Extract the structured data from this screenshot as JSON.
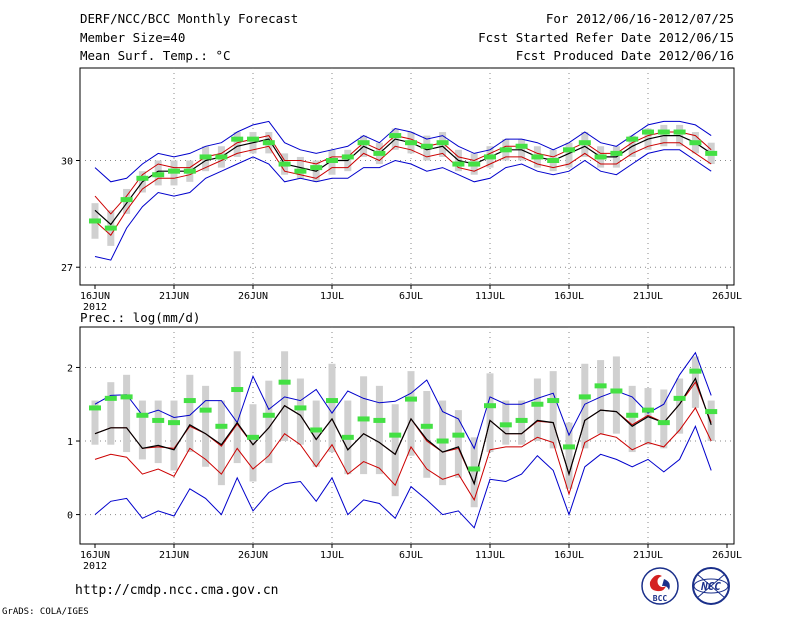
{
  "header": {
    "title": "DERF/NCC/BCC Monthly Forecast",
    "member_size": "Member Size=40",
    "variable": "Mean Surf. Temp.: °C",
    "period": "For 2012/06/16-2012/07/25",
    "refer_date": "Fcst Started Refer Date 2012/06/15",
    "produced_date": "Fcst Produced Date 2012/06/16"
  },
  "precip_label": "Prec.: log(mm/d)",
  "footer": {
    "url": "http://cmdp.ncc.cma.gov.cn",
    "grads": "GrADS: COLA/IGES",
    "logo_left": "BCC",
    "logo_right": "NCC"
  },
  "colors": {
    "upper_lower": "#0000cc",
    "sd_band": "#cc0000",
    "mean": "#000000",
    "observed": "#44e044",
    "spread_bar": "#d0d0d0",
    "grid": "#888888"
  },
  "chart_data": [
    {
      "type": "line",
      "name": "temperature",
      "title": "Mean Surf. Temp.: °C",
      "x_labels": [
        {
          "day": 0,
          "label": "16JUN"
        },
        {
          "day": 5,
          "label": "21JUN"
        },
        {
          "day": 10,
          "label": "26JUN"
        },
        {
          "day": 15,
          "label": "1JUL"
        },
        {
          "day": 20,
          "label": "6JUL"
        },
        {
          "day": 25,
          "label": "11JUL"
        },
        {
          "day": 30,
          "label": "16JUL"
        },
        {
          "day": 35,
          "label": "21JUL"
        },
        {
          "day": 40,
          "label": "26JUL"
        }
      ],
      "year_label": "2012",
      "xlim": [
        0,
        40
      ],
      "ylim": [
        26.5,
        32.6
      ],
      "yticks": [
        27,
        30
      ],
      "series": [
        {
          "name": "upper",
          "values": [
            29.8,
            29.4,
            29.5,
            29.9,
            30.2,
            30.1,
            30.2,
            30.4,
            30.5,
            30.8,
            31.0,
            31.1,
            30.5,
            30.3,
            30.2,
            30.3,
            30.4,
            30.7,
            30.5,
            30.9,
            30.8,
            30.6,
            30.7,
            30.4,
            30.2,
            30.3,
            30.6,
            30.6,
            30.5,
            30.3,
            30.5,
            30.8,
            30.5,
            30.4,
            30.7,
            31.0,
            31.1,
            31.1,
            31.0,
            30.7
          ]
        },
        {
          "name": "sd_upper",
          "values": [
            29.0,
            28.5,
            29.0,
            29.6,
            29.9,
            29.8,
            29.8,
            30.1,
            30.2,
            30.5,
            30.6,
            30.7,
            30.0,
            30.0,
            29.9,
            30.1,
            30.1,
            30.5,
            30.3,
            30.7,
            30.6,
            30.4,
            30.5,
            30.1,
            30.0,
            30.2,
            30.4,
            30.4,
            30.2,
            30.1,
            30.3,
            30.5,
            30.2,
            30.2,
            30.5,
            30.7,
            30.8,
            30.8,
            30.7,
            30.3
          ]
        },
        {
          "name": "mean",
          "values": [
            28.6,
            28.2,
            28.8,
            29.4,
            29.7,
            29.7,
            29.7,
            30.0,
            30.1,
            30.4,
            30.5,
            30.6,
            29.9,
            29.8,
            29.7,
            30.0,
            30.0,
            30.4,
            30.2,
            30.6,
            30.5,
            30.3,
            30.4,
            30.0,
            29.9,
            30.1,
            30.3,
            30.3,
            30.1,
            30.0,
            30.2,
            30.4,
            30.1,
            30.1,
            30.4,
            30.6,
            30.7,
            30.7,
            30.5,
            30.2
          ]
        },
        {
          "name": "sd_lower",
          "values": [
            28.3,
            27.9,
            28.6,
            29.2,
            29.5,
            29.5,
            29.6,
            29.8,
            30.0,
            30.2,
            30.3,
            30.4,
            29.7,
            29.6,
            29.5,
            29.8,
            29.8,
            30.2,
            30.0,
            30.4,
            30.3,
            30.1,
            30.2,
            29.8,
            29.7,
            29.9,
            30.1,
            30.1,
            29.9,
            29.8,
            29.9,
            30.2,
            29.9,
            29.9,
            30.2,
            30.4,
            30.5,
            30.5,
            30.2,
            29.9
          ]
        },
        {
          "name": "lower",
          "values": [
            27.3,
            27.2,
            28.1,
            28.7,
            29.1,
            29.0,
            29.1,
            29.5,
            29.7,
            29.9,
            30.1,
            29.9,
            29.4,
            29.5,
            29.4,
            29.5,
            29.5,
            29.8,
            29.8,
            30.0,
            29.9,
            29.7,
            29.8,
            29.6,
            29.4,
            29.5,
            29.8,
            29.9,
            29.7,
            29.6,
            29.7,
            30.0,
            29.7,
            29.6,
            29.9,
            30.2,
            30.3,
            30.3,
            30.0,
            29.7
          ]
        },
        {
          "name": "observed",
          "values": [
            28.3,
            28.1,
            28.9,
            29.5,
            29.6,
            29.7,
            29.7,
            30.1,
            30.1,
            30.6,
            30.6,
            30.5,
            29.9,
            29.7,
            29.8,
            30.0,
            30.1,
            30.5,
            30.2,
            30.7,
            30.5,
            30.4,
            30.5,
            29.9,
            29.9,
            30.1,
            30.3,
            30.4,
            30.1,
            30.0,
            30.3,
            30.5,
            30.1,
            30.2,
            30.6,
            30.8,
            30.8,
            30.8,
            30.5,
            30.2
          ]
        },
        {
          "name": "spread_high",
          "values": [
            28.8,
            28.6,
            29.2,
            29.7,
            30.0,
            30.0,
            30.0,
            30.4,
            30.4,
            30.8,
            30.8,
            30.8,
            30.2,
            30.1,
            30.0,
            30.3,
            30.3,
            30.7,
            30.5,
            30.9,
            30.8,
            30.7,
            30.8,
            30.3,
            30.2,
            30.4,
            30.6,
            30.6,
            30.4,
            30.3,
            30.5,
            30.8,
            30.4,
            30.4,
            30.7,
            30.9,
            31.0,
            31.0,
            30.8,
            30.5
          ]
        },
        {
          "name": "spread_low",
          "values": [
            27.8,
            27.6,
            28.5,
            29.1,
            29.3,
            29.3,
            29.4,
            29.7,
            29.8,
            30.1,
            30.2,
            30.2,
            29.6,
            29.5,
            29.4,
            29.6,
            29.7,
            30.1,
            29.9,
            30.3,
            30.2,
            30.0,
            30.1,
            29.7,
            29.6,
            29.8,
            30.0,
            30.0,
            29.8,
            29.7,
            29.8,
            30.1,
            29.8,
            29.8,
            30.1,
            30.3,
            30.4,
            30.4,
            30.2,
            29.9
          ]
        }
      ]
    },
    {
      "type": "line",
      "name": "precipitation",
      "title": "Prec.: log(mm/d)",
      "x_labels": [
        {
          "day": 0,
          "label": "16JUN"
        },
        {
          "day": 5,
          "label": "21JUN"
        },
        {
          "day": 10,
          "label": "26JUN"
        },
        {
          "day": 15,
          "label": "1JUL"
        },
        {
          "day": 20,
          "label": "6JUL"
        },
        {
          "day": 25,
          "label": "11JUL"
        },
        {
          "day": 30,
          "label": "16JUL"
        },
        {
          "day": 35,
          "label": "21JUL"
        },
        {
          "day": 40,
          "label": "26JUL"
        }
      ],
      "year_label": "2012",
      "xlim": [
        0,
        40
      ],
      "ylim": [
        -0.4,
        2.55
      ],
      "yticks": [
        0,
        1,
        2
      ],
      "series": [
        {
          "name": "upper",
          "values": [
            1.5,
            1.62,
            1.63,
            1.35,
            1.42,
            1.32,
            1.35,
            1.55,
            1.55,
            1.25,
            1.88,
            1.43,
            1.6,
            1.55,
            1.7,
            1.38,
            1.68,
            1.58,
            1.52,
            1.54,
            1.65,
            1.83,
            1.4,
            1.3,
            0.9,
            1.6,
            1.5,
            1.5,
            1.58,
            1.65,
            1.08,
            1.5,
            1.6,
            1.68,
            1.6,
            1.38,
            1.5,
            1.9,
            2.2,
            1.62
          ]
        },
        {
          "name": "sd_upper",
          "values": [
            1.1,
            1.18,
            1.18,
            0.9,
            0.92,
            0.9,
            1.2,
            1.1,
            0.93,
            1.23,
            0.95,
            1.18,
            1.48,
            1.35,
            1.02,
            1.3,
            0.88,
            1.1,
            0.98,
            0.82,
            1.3,
            1.0,
            0.85,
            0.9,
            0.42,
            1.28,
            1.1,
            1.1,
            1.27,
            1.25,
            0.55,
            1.28,
            1.42,
            1.4,
            1.22,
            1.35,
            1.25,
            1.5,
            1.8,
            1.25
          ]
        },
        {
          "name": "mean",
          "values": [
            1.1,
            1.18,
            1.18,
            0.9,
            0.94,
            0.88,
            1.22,
            1.1,
            0.95,
            1.25,
            0.95,
            1.18,
            1.48,
            1.35,
            1.02,
            1.3,
            0.88,
            1.1,
            0.98,
            0.82,
            1.3,
            1.02,
            0.85,
            0.92,
            0.42,
            1.28,
            1.1,
            1.1,
            1.28,
            1.25,
            0.55,
            1.28,
            1.42,
            1.4,
            1.2,
            1.33,
            1.25,
            1.5,
            1.85,
            1.22
          ]
        },
        {
          "name": "sd_lower",
          "values": [
            0.75,
            0.82,
            0.78,
            0.55,
            0.62,
            0.52,
            0.9,
            0.75,
            0.55,
            0.9,
            0.62,
            0.8,
            1.1,
            0.95,
            0.65,
            0.95,
            0.55,
            0.72,
            0.63,
            0.4,
            0.92,
            0.62,
            0.48,
            0.55,
            0.2,
            0.88,
            0.92,
            0.92,
            1.05,
            0.98,
            0.28,
            0.98,
            1.1,
            1.05,
            0.88,
            0.98,
            0.92,
            1.15,
            1.45,
            1.0
          ]
        },
        {
          "name": "lower",
          "values": [
            0.0,
            0.18,
            0.22,
            -0.05,
            0.05,
            -0.02,
            0.35,
            0.22,
            0.0,
            0.5,
            0.05,
            0.3,
            0.42,
            0.45,
            0.18,
            0.5,
            0.0,
            0.2,
            0.15,
            -0.05,
            0.38,
            0.2,
            0.0,
            0.05,
            -0.18,
            0.48,
            0.45,
            0.55,
            0.8,
            0.6,
            0.0,
            0.65,
            0.82,
            0.75,
            0.65,
            0.75,
            0.58,
            0.75,
            1.2,
            0.6
          ]
        },
        {
          "name": "observed",
          "values": [
            1.45,
            1.58,
            1.6,
            1.35,
            1.28,
            1.25,
            1.55,
            1.42,
            1.2,
            1.7,
            1.05,
            1.35,
            1.8,
            1.45,
            1.15,
            1.55,
            1.05,
            1.3,
            1.28,
            1.08,
            1.57,
            1.2,
            1.0,
            1.08,
            0.62,
            1.48,
            1.22,
            1.28,
            1.5,
            1.55,
            0.92,
            1.6,
            1.75,
            1.68,
            1.35,
            1.42,
            1.25,
            1.58,
            1.95,
            1.4
          ]
        },
        {
          "name": "spread_high",
          "values": [
            1.55,
            1.8,
            1.9,
            1.55,
            1.55,
            1.55,
            1.9,
            1.75,
            1.55,
            2.22,
            1.5,
            1.82,
            2.22,
            1.85,
            1.55,
            2.05,
            1.55,
            1.88,
            1.75,
            1.5,
            1.95,
            1.68,
            1.55,
            1.42,
            1.05,
            1.92,
            1.55,
            1.55,
            1.85,
            1.95,
            1.25,
            2.05,
            2.1,
            2.15,
            1.75,
            1.72,
            1.7,
            1.85,
            2.15,
            1.55
          ]
        },
        {
          "name": "spread_low",
          "values": [
            0.95,
            0.95,
            0.85,
            0.75,
            0.7,
            0.6,
            0.85,
            0.65,
            0.4,
            0.7,
            0.45,
            0.7,
            1.0,
            0.95,
            0.65,
            0.85,
            0.55,
            0.55,
            0.55,
            0.25,
            0.8,
            0.5,
            0.4,
            0.5,
            0.1,
            0.85,
            0.95,
            0.95,
            1.0,
            0.9,
            0.35,
            0.9,
            1.1,
            1.1,
            0.85,
            0.95,
            0.9,
            1.1,
            1.45,
            1.0
          ]
        }
      ]
    }
  ]
}
